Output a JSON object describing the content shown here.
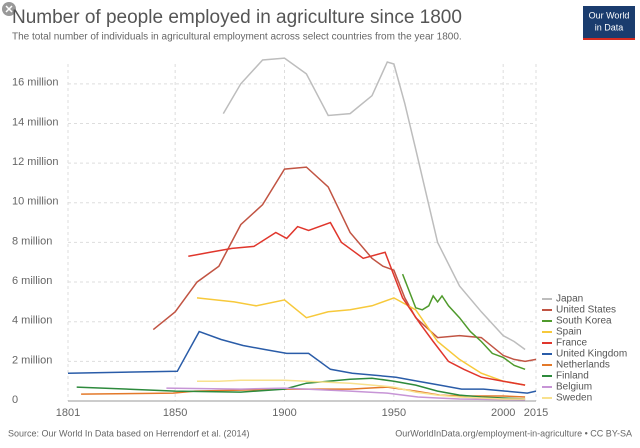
{
  "chart_data": {
    "type": "line",
    "title": "Number of people employed in agriculture since 1800",
    "subtitle": "The total number of individuals in agricultural employment across select countries from the year 1800.",
    "source": "Source: Our World In Data based on Herrendorf et al. (2014)",
    "url": "OurWorldInData.org/employment-in-agriculture • CC BY-SA",
    "logo": [
      "Our World",
      "in Data"
    ],
    "xlim": [
      1801,
      2015
    ],
    "xticks": [
      1801,
      1850,
      1900,
      1950,
      2000,
      2015
    ],
    "ylim": [
      0,
      17000000
    ],
    "yticks": [
      {
        "value": 0,
        "label": "0"
      },
      {
        "value": 2000000,
        "label": "2 million"
      },
      {
        "value": 4000000,
        "label": "4 million"
      },
      {
        "value": 6000000,
        "label": "6 million"
      },
      {
        "value": 8000000,
        "label": "8 million"
      },
      {
        "value": 10000000,
        "label": "10 million"
      },
      {
        "value": 12000000,
        "label": "12 million"
      },
      {
        "value": 14000000,
        "label": "14 million"
      },
      {
        "value": 16000000,
        "label": "16 million"
      }
    ],
    "grid": true,
    "legend": "right",
    "series": [
      {
        "name": "Japan",
        "color": "#bdbdbd",
        "x": [
          1872,
          1880,
          1890,
          1900,
          1910,
          1920,
          1930,
          1940,
          1947,
          1950,
          1955,
          1960,
          1970,
          1980,
          1990,
          2000,
          2005,
          2010
        ],
        "values": [
          14500000,
          16000000,
          17200000,
          17300000,
          16500000,
          14400000,
          14500000,
          15400000,
          17100000,
          17000000,
          15000000,
          12700000,
          8000000,
          5800000,
          4500000,
          3300000,
          3000000,
          2600000
        ]
      },
      {
        "name": "United States",
        "color": "#c15443",
        "x": [
          1840,
          1850,
          1860,
          1870,
          1880,
          1890,
          1900,
          1910,
          1920,
          1930,
          1940,
          1945,
          1950,
          1955,
          1960,
          1970,
          1980,
          1990,
          2000,
          2005,
          2010,
          2015
        ],
        "values": [
          3600000,
          4500000,
          6000000,
          6800000,
          8900000,
          9900000,
          11700000,
          11800000,
          10800000,
          8500000,
          7200000,
          6800000,
          6600000,
          5200000,
          4200000,
          3200000,
          3300000,
          3200000,
          2300000,
          2100000,
          2000000,
          2100000
        ]
      },
      {
        "name": "South Korea",
        "color": "#4f9a2c",
        "x": [
          1954,
          1960,
          1963,
          1966,
          1968,
          1970,
          1972,
          1975,
          1980,
          1985,
          1990,
          1995,
          2000,
          2005,
          2010
        ],
        "values": [
          6400000,
          4700000,
          4600000,
          4800000,
          5300000,
          5000000,
          5300000,
          4800000,
          4200000,
          3500000,
          3000000,
          2400000,
          2200000,
          1800000,
          1600000
        ]
      },
      {
        "name": "Spain",
        "color": "#f7c93b",
        "x": [
          1860,
          1877,
          1887,
          1900,
          1910,
          1920,
          1930,
          1940,
          1950,
          1960,
          1970,
          1980,
          1990,
          2000,
          2010
        ],
        "values": [
          5200000,
          5000000,
          4800000,
          5100000,
          4200000,
          4500000,
          4600000,
          4800000,
          5200000,
          4600000,
          3000000,
          2100000,
          1400000,
          1000000,
          800000
        ]
      },
      {
        "name": "France",
        "color": "#e0362c",
        "x": [
          1856,
          1866,
          1876,
          1886,
          1896,
          1901,
          1906,
          1911,
          1921,
          1926,
          1931,
          1936,
          1946,
          1954,
          1962,
          1968,
          1975,
          1982,
          1990,
          2000,
          2010
        ],
        "values": [
          7300000,
          7500000,
          7700000,
          7800000,
          8500000,
          8200000,
          8800000,
          8600000,
          9000000,
          8000000,
          7600000,
          7200000,
          7500000,
          5200000,
          3900000,
          3000000,
          2000000,
          1600000,
          1200000,
          1000000,
          800000
        ]
      },
      {
        "name": "United Kingdom",
        "color": "#2a5ca8",
        "x": [
          1801,
          1851,
          1861,
          1871,
          1881,
          1891,
          1901,
          1911,
          1921,
          1931,
          1951,
          1961,
          1971,
          1981,
          1991,
          2001,
          2011,
          2015
        ],
        "values": [
          1400000,
          1500000,
          3500000,
          3100000,
          2800000,
          2600000,
          2400000,
          2400000,
          1600000,
          1400000,
          1200000,
          1000000,
          800000,
          600000,
          600000,
          500000,
          400000,
          500000
        ]
      },
      {
        "name": "Netherlands",
        "color": "#e3792a",
        "x": [
          1807,
          1849,
          1859,
          1899,
          1909,
          1920,
          1930,
          1947,
          1960,
          1971,
          1980,
          1990,
          2000,
          2010
        ],
        "values": [
          350000,
          400000,
          500000,
          600000,
          600000,
          600000,
          600000,
          700000,
          500000,
          300000,
          250000,
          250000,
          250000,
          200000
        ]
      },
      {
        "name": "Finland",
        "color": "#2d8a3c",
        "x": [
          1805,
          1850,
          1880,
          1900,
          1910,
          1920,
          1930,
          1940,
          1950,
          1960,
          1970,
          1980,
          1990,
          2000,
          2010
        ],
        "values": [
          700000,
          500000,
          450000,
          600000,
          900000,
          1000000,
          1100000,
          1150000,
          1000000,
          800000,
          500000,
          300000,
          200000,
          150000,
          100000
        ]
      },
      {
        "name": "Belgium",
        "color": "#c795d6",
        "x": [
          1846,
          1880,
          1900,
          1910,
          1920,
          1930,
          1947,
          1961,
          1970,
          1980,
          2000,
          2010
        ],
        "values": [
          650000,
          600000,
          650000,
          600000,
          550000,
          500000,
          400000,
          200000,
          150000,
          100000,
          70000,
          60000
        ]
      },
      {
        "name": "Sweden",
        "color": "#f8e18e",
        "x": [
          1860,
          1870,
          1880,
          1900,
          1910,
          1920,
          1930,
          1940,
          1950,
          1960,
          1970,
          1980,
          1990,
          2000,
          2010
        ],
        "values": [
          1000000,
          1000000,
          1050000,
          1050000,
          1000000,
          950000,
          900000,
          800000,
          700000,
          450000,
          300000,
          200000,
          150000,
          100000,
          100000
        ]
      }
    ]
  }
}
